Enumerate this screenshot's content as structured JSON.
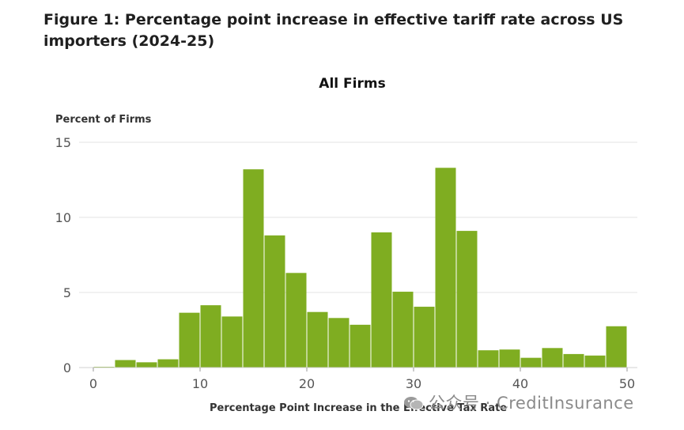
{
  "figure_title": "Figure 1: Percentage point increase in effective tariff rate across US importers (2024-25)",
  "watermark": "公众号 · CreditInsurance",
  "colors": {
    "bar": "#7fad21",
    "grid": "#e3e3e3",
    "tick_text": "#555555"
  },
  "chart_data": {
    "type": "bar",
    "title": "All Firms",
    "xlabel": "Percentage Point Increase in the Effective Tax Rate",
    "ylabel": "Percent of Firms",
    "xlim": [
      0,
      50
    ],
    "ylim": [
      0,
      15
    ],
    "xticks": [
      0,
      10,
      20,
      30,
      40,
      50
    ],
    "yticks": [
      0,
      5,
      10,
      15
    ],
    "grid": true,
    "bin_width": 2,
    "bins": [
      {
        "x0": 0,
        "x1": 2,
        "value": 0.05
      },
      {
        "x0": 2,
        "x1": 4,
        "value": 0.5
      },
      {
        "x0": 4,
        "x1": 6,
        "value": 0.35
      },
      {
        "x0": 6,
        "x1": 8,
        "value": 0.55
      },
      {
        "x0": 8,
        "x1": 10,
        "value": 3.65
      },
      {
        "x0": 10,
        "x1": 12,
        "value": 4.15
      },
      {
        "x0": 12,
        "x1": 14,
        "value": 3.4
      },
      {
        "x0": 14,
        "x1": 16,
        "value": 13.2
      },
      {
        "x0": 16,
        "x1": 18,
        "value": 8.8
      },
      {
        "x0": 18,
        "x1": 20,
        "value": 6.3
      },
      {
        "x0": 20,
        "x1": 22,
        "value": 3.7
      },
      {
        "x0": 22,
        "x1": 24,
        "value": 3.3
      },
      {
        "x0": 24,
        "x1": 26,
        "value": 2.85
      },
      {
        "x0": 26,
        "x1": 28,
        "value": 9.0
      },
      {
        "x0": 28,
        "x1": 30,
        "value": 5.05
      },
      {
        "x0": 30,
        "x1": 32,
        "value": 4.05
      },
      {
        "x0": 32,
        "x1": 34,
        "value": 13.3
      },
      {
        "x0": 34,
        "x1": 36,
        "value": 9.1
      },
      {
        "x0": 36,
        "x1": 38,
        "value": 1.15
      },
      {
        "x0": 38,
        "x1": 40,
        "value": 1.2
      },
      {
        "x0": 40,
        "x1": 42,
        "value": 0.65
      },
      {
        "x0": 42,
        "x1": 44,
        "value": 1.3
      },
      {
        "x0": 44,
        "x1": 46,
        "value": 0.9
      },
      {
        "x0": 46,
        "x1": 48,
        "value": 0.8
      },
      {
        "x0": 48,
        "x1": 50,
        "value": 2.75
      }
    ]
  }
}
